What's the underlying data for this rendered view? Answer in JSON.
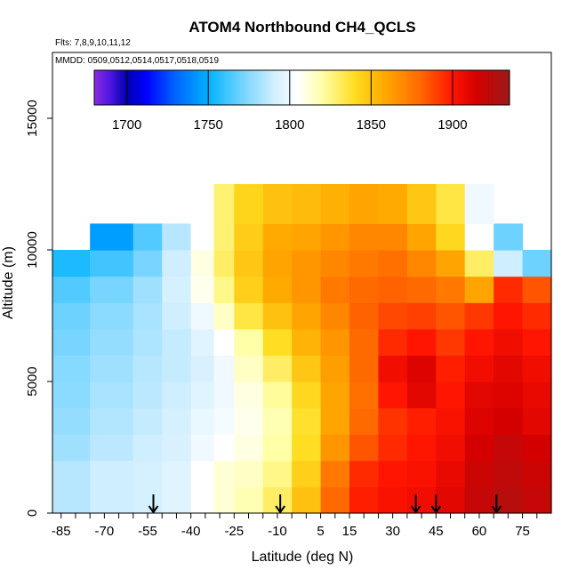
{
  "chart_data": {
    "type": "heatmap",
    "title": "ATOM4 Northbound CH4_QCLS",
    "flights_label": "Flts: 7,8,9,10,11,12",
    "dates_label": "MMDD: 0509,0512,0514,0517,0518,0519",
    "xlabel": "Latitude (deg N)",
    "ylabel": "Altitude (m)",
    "xlim": [
      -88,
      85
    ],
    "ylim": [
      0,
      17500
    ],
    "x_tick_labels": [
      "-85",
      "-70",
      "-55",
      "-40",
      "-25",
      "-10",
      "5",
      "15",
      "30",
      "45",
      "60",
      "75"
    ],
    "x_tick_values": [
      -85,
      -70,
      -55,
      -40,
      -25,
      -10,
      5,
      15,
      30,
      45,
      60,
      75
    ],
    "y_tick_labels": [
      "0",
      "5000",
      "10000",
      "15000"
    ],
    "y_tick_values": [
      0,
      5000,
      10000,
      15000
    ],
    "colorbar": {
      "min": 1680,
      "max": 1935,
      "tick_labels": [
        "1700",
        "1750",
        "1800",
        "1850",
        "1900"
      ],
      "tick_values": [
        1700,
        1750,
        1800,
        1850,
        1900
      ],
      "stops": [
        {
          "v": 1680,
          "c": "#8a2be2"
        },
        {
          "v": 1690,
          "c": "#4b16e0"
        },
        {
          "v": 1700,
          "c": "#0000b0"
        },
        {
          "v": 1712,
          "c": "#0000ff"
        },
        {
          "v": 1730,
          "c": "#0066ff"
        },
        {
          "v": 1750,
          "c": "#00b2ff"
        },
        {
          "v": 1770,
          "c": "#6ed2ff"
        },
        {
          "v": 1790,
          "c": "#cfeeff"
        },
        {
          "v": 1805,
          "c": "#ffffff"
        },
        {
          "v": 1820,
          "c": "#ffffa8"
        },
        {
          "v": 1840,
          "c": "#ffdd22"
        },
        {
          "v": 1858,
          "c": "#ffaa00"
        },
        {
          "v": 1880,
          "c": "#ff6a00"
        },
        {
          "v": 1900,
          "c": "#ff1500"
        },
        {
          "v": 1915,
          "c": "#d40000"
        },
        {
          "v": 1935,
          "c": "#9a1a1a"
        }
      ]
    },
    "arrow_latitudes": [
      -53,
      -9,
      38,
      45,
      66
    ],
    "ch4_field": {
      "lat_breaks": [
        -88,
        -75,
        -60,
        -50,
        -40,
        -32,
        -25,
        -15,
        -5,
        5,
        15,
        25,
        35,
        45,
        55,
        65,
        75,
        85
      ],
      "alt_breaks": [
        0,
        1000,
        2000,
        3000,
        4000,
        5000,
        6000,
        7000,
        8000,
        9000,
        10000,
        11000,
        12500
      ],
      "values": [
        [
          1785,
          1790,
          1792,
          1795,
          1805,
          1812,
          1818,
          1830,
          1850,
          1880,
          1898,
          1902,
          1905,
          1910,
          1920,
          1925,
          1920
        ],
        [
          1785,
          1790,
          1792,
          1795,
          1805,
          1812,
          1815,
          1825,
          1845,
          1875,
          1895,
          1900,
          1902,
          1908,
          1918,
          1922,
          1918
        ],
        [
          1780,
          1786,
          1790,
          1793,
          1800,
          1805,
          1810,
          1820,
          1840,
          1865,
          1885,
          1895,
          1900,
          1905,
          1915,
          1920,
          1915
        ],
        [
          1778,
          1784,
          1788,
          1792,
          1798,
          1802,
          1808,
          1818,
          1838,
          1860,
          1880,
          1893,
          1898,
          1902,
          1912,
          1915,
          1910
        ],
        [
          1776,
          1782,
          1786,
          1790,
          1795,
          1800,
          1810,
          1822,
          1842,
          1860,
          1878,
          1900,
          1910,
          1900,
          1910,
          1912,
          1908
        ],
        [
          1775,
          1780,
          1785,
          1788,
          1793,
          1800,
          1815,
          1830,
          1848,
          1862,
          1880,
          1905,
          1912,
          1898,
          1905,
          1910,
          1905
        ],
        [
          1772,
          1778,
          1783,
          1788,
          1795,
          1805,
          1820,
          1840,
          1855,
          1865,
          1880,
          1895,
          1900,
          1892,
          1900,
          1905,
          1900
        ],
        [
          1770,
          1776,
          1782,
          1790,
          1800,
          1815,
          1835,
          1850,
          1860,
          1870,
          1882,
          1888,
          1890,
          1885,
          1892,
          1900,
          1895
        ],
        [
          1765,
          1772,
          1780,
          1792,
          1808,
          1825,
          1845,
          1858,
          1865,
          1875,
          1880,
          1882,
          1880,
          1875,
          1860,
          1895,
          1885
        ],
        [
          1755,
          1762,
          1772,
          1790,
          1810,
          1830,
          1848,
          1860,
          1865,
          1870,
          1875,
          1878,
          1870,
          1860,
          1830,
          1790,
          1770
        ],
        [
          null,
          1745,
          1765,
          1785,
          1805,
          1828,
          1846,
          1858,
          1860,
          1865,
          1870,
          1870,
          1860,
          1842,
          1805,
          1770,
          null
        ],
        [
          null,
          null,
          null,
          null,
          1805,
          1828,
          1843,
          1850,
          1852,
          1856,
          1860,
          1858,
          1848,
          1835,
          1800,
          null,
          null
        ]
      ]
    }
  }
}
